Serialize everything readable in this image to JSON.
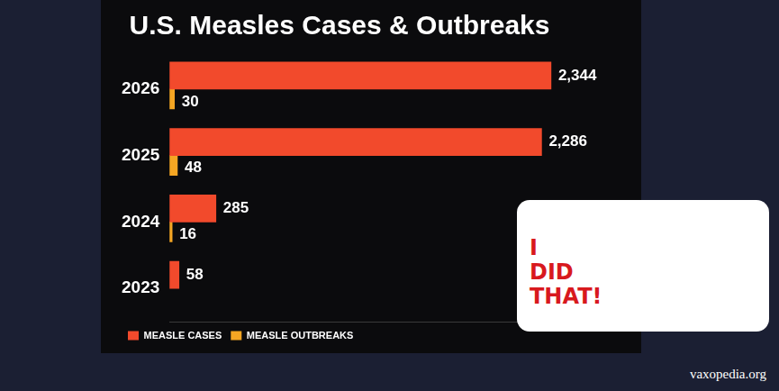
{
  "chart_data": {
    "type": "bar",
    "orientation": "horizontal",
    "title": "U.S. Measles Cases & Outbreaks",
    "categories": [
      "2026",
      "2025",
      "2024",
      "2023"
    ],
    "series": [
      {
        "name": "MEASLE CASES",
        "color": "#f24a2c",
        "values": [
          2344,
          2286,
          285,
          58
        ],
        "value_labels": [
          "2,344",
          "2,286",
          "285",
          "58"
        ]
      },
      {
        "name": "MEASLE OUTBREAKS",
        "color": "#f5a623",
        "values": [
          30,
          48,
          16,
          null
        ]
      }
    ],
    "xlim": [
      0,
      2400
    ],
    "grid": false,
    "legend": "bottom",
    "data_labels": true,
    "tick_labels": "y",
    "annotations": [
      "I DID THAT!",
      "vaxopedia.org"
    ]
  }
}
